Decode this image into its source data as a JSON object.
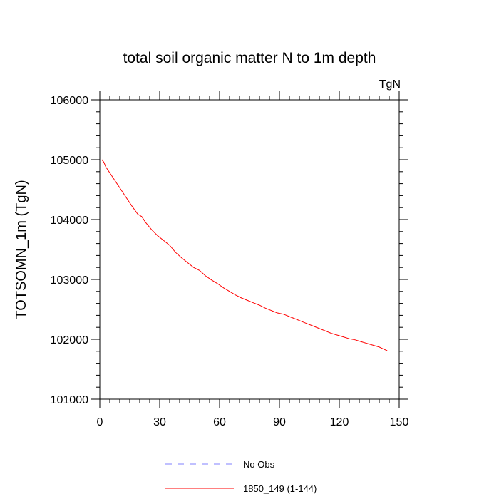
{
  "chart_data": {
    "type": "line",
    "title": "total soil organic matter N to 1m depth",
    "units": "TgN",
    "xlabel": "",
    "ylabel": "TOTSOMN_1m  (TgN)",
    "xlim": [
      0,
      150
    ],
    "ylim": [
      101000,
      106000
    ],
    "xticks": [
      0,
      30,
      60,
      90,
      120,
      150
    ],
    "xtick_labels": [
      "0",
      "30",
      "60",
      "90",
      "120",
      "150"
    ],
    "yticks": [
      101000,
      102000,
      103000,
      104000,
      105000,
      106000
    ],
    "ytick_labels": [
      "101000",
      "102000",
      "103000",
      "104000",
      "105000",
      "106000"
    ],
    "grid": false,
    "legend_position": "bottom",
    "series": [
      {
        "name": "No Obs",
        "color": "#8080ff",
        "dash": true,
        "x": [],
        "y": []
      },
      {
        "name": "1850_149 (1-144)",
        "color": "#ff0000",
        "dash": false,
        "x": [
          1,
          2,
          3,
          5,
          7,
          10,
          13,
          16,
          19,
          21,
          23,
          26,
          29,
          32,
          35,
          38,
          41,
          44,
          47,
          50,
          53,
          56,
          59,
          62,
          65,
          68,
          71,
          74,
          77,
          80,
          83,
          86,
          89,
          92,
          95,
          98,
          101,
          104,
          107,
          110,
          113,
          116,
          119,
          122,
          125,
          128,
          131,
          134,
          137,
          140,
          142,
          144
        ],
        "y": [
          105000,
          104960,
          104880,
          104780,
          104680,
          104530,
          104380,
          104230,
          104090,
          104050,
          103950,
          103830,
          103730,
          103650,
          103570,
          103450,
          103360,
          103280,
          103200,
          103150,
          103060,
          102990,
          102930,
          102860,
          102800,
          102740,
          102690,
          102650,
          102610,
          102570,
          102520,
          102480,
          102440,
          102420,
          102380,
          102340,
          102300,
          102260,
          102220,
          102180,
          102140,
          102100,
          102070,
          102040,
          102010,
          101990,
          101960,
          101930,
          101900,
          101870,
          101840,
          101810
        ]
      }
    ]
  }
}
